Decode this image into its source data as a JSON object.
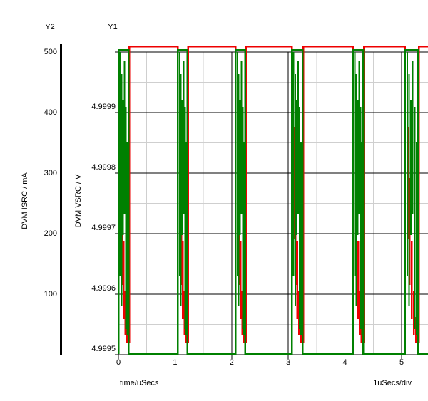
{
  "chart_data": {
    "type": "line",
    "title": "",
    "x_axis": {
      "title": "time/uSecs",
      "ticks": [
        "0",
        "1",
        "2",
        "3",
        "4",
        "5"
      ],
      "minor_per_div": 2,
      "scale_label": "1uSecs/div",
      "range_usecs": [
        0,
        5.47
      ]
    },
    "y_axes": {
      "y1": {
        "header": "Y1",
        "title": "DVM VSRC / V",
        "ticks": [
          "4.9999",
          "4.9998",
          "4.9997",
          "4.9996",
          "4.9995"
        ],
        "top_value": 5.0,
        "bottom_value": 4.9995,
        "tick_step": 0.0001
      },
      "y2": {
        "header": "Y2",
        "title": "DVM ISRC / mA",
        "ticks": [
          "500",
          "400",
          "300",
          "200",
          "100"
        ],
        "top_value": 500,
        "bottom_value": 0,
        "tick_step": 100
      }
    },
    "pulse_windows_usecs": [
      [
        0.0,
        0.18
      ],
      [
        1.05,
        1.22
      ],
      [
        2.07,
        2.24
      ],
      [
        3.06,
        3.25
      ],
      [
        4.14,
        4.32
      ],
      [
        5.06,
        5.29
      ]
    ],
    "series": [
      {
        "name": "DVM VSRC",
        "axis": "y1",
        "color": "#008000",
        "high_v": 5.0,
        "low_v": 4.9995
      },
      {
        "name": "DVM ISRC",
        "axis": "y2",
        "color": "#ee0000",
        "high_ma": 510,
        "low_ma": 0
      }
    ],
    "grid": {
      "major_color": "#000000",
      "minor_color": "#cfcfcf"
    }
  }
}
